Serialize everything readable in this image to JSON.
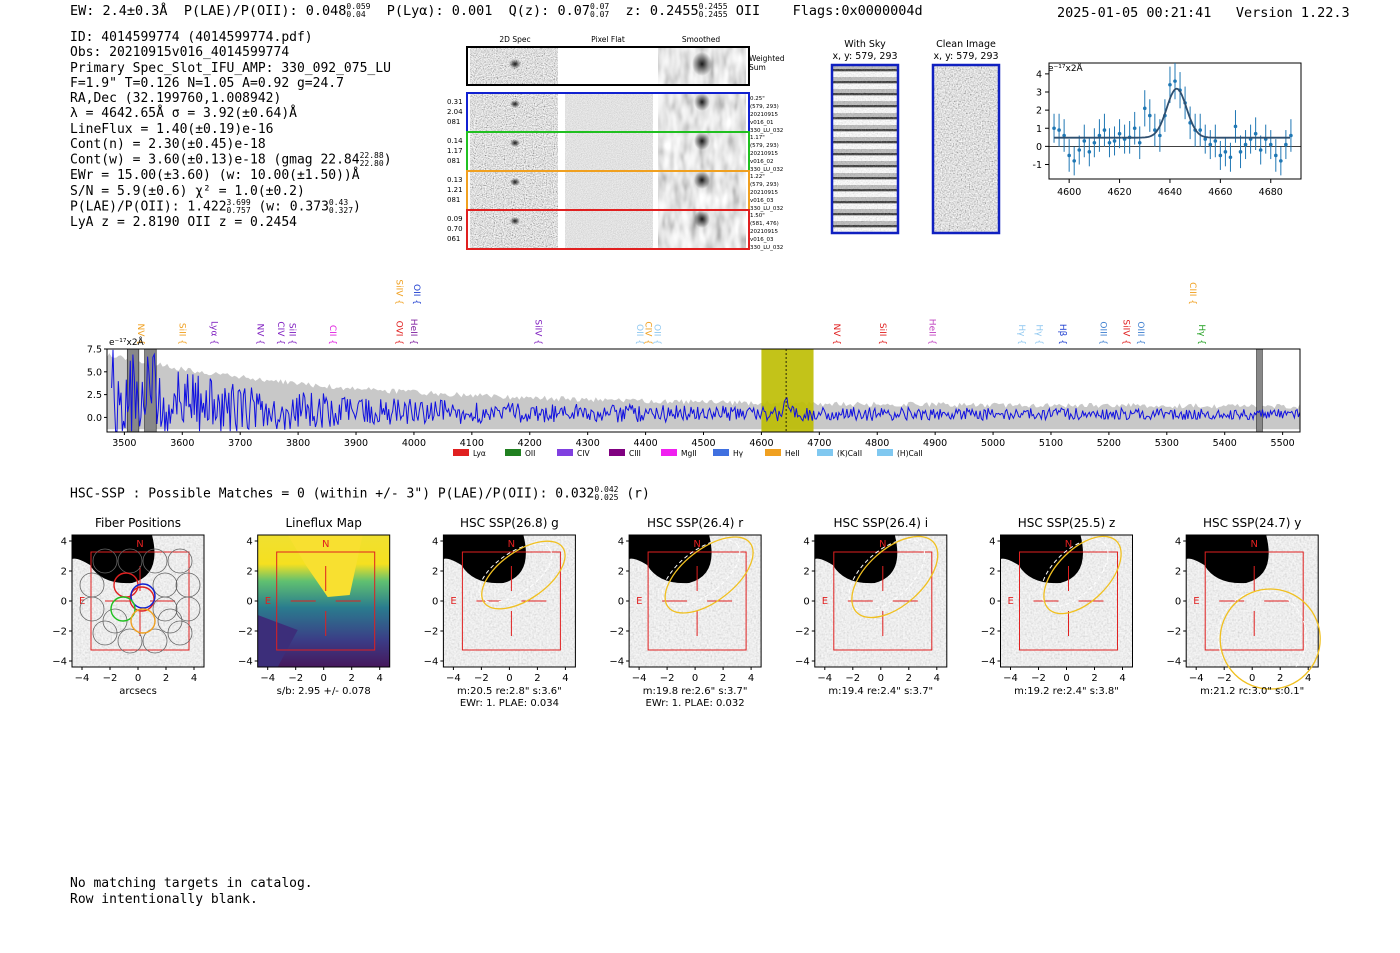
{
  "header": {
    "ew": "EW: 2.4±0.3Å",
    "plae": "P(LAE)/P(OII): 0.048",
    "plae_hi": "0.059",
    "plae_lo": "0.04",
    "plya": "P(Lyα): 0.001",
    "qz": "Q(z): 0.07",
    "qz_hi": "0.07",
    "qz_lo": "0.07",
    "z": "z: 0.2455",
    "z_hi": "0.2455",
    "z_lo": "0.2455",
    "z_line": "OII",
    "flags": "Flags:0x0000004d",
    "datetime": "2025-01-05 00:21:41",
    "version": "Version 1.22.3"
  },
  "info": {
    "id": "ID: 4014599774 (4014599774.pdf)",
    "obs": "Obs: 20210915v016_4014599774",
    "primary": "Primary Spec_Slot_IFU_AMP: 330_092_075_LU",
    "params": "F=1.9\"  T=0.126  N=1.05  A=0.92  g=24.7",
    "radec": "RA,Dec (32.199760,1.008942)",
    "lambda": "λ = 4642.65Å  σ = 3.92(±0.64)Å",
    "lineflux": "LineFlux = 1.40(±0.19)e-16",
    "contn": "Cont(n) = 2.30(±0.45)e-18",
    "contw": "Cont(w) = 3.60(±0.13)e-18 (gmag 22.84",
    "contw_hi": "22.88",
    "contw_lo": "22.80",
    "ewr": "EWr = 15.00(±3.60) (w: 10.00(±1.50))Å",
    "sn": "S/N = 5.9(±0.6)  χ² = 1.0(±0.2)",
    "plae": "P(LAE)/P(OII): 1.422",
    "plae_hi": "3.699",
    "plae_lo": "0.757",
    "plae_w": "(w: 0.373",
    "plae_w_hi": "0.43",
    "plae_w_lo": "0.327",
    "lyaz": "LyA z = 2.8190   OII z = 0.2454"
  },
  "cutouts": {
    "col_titles": [
      "2D Spec",
      "Pixel Flat",
      "Smoothed"
    ],
    "weighted_label_1": "Weighted",
    "weighted_label_2": "Sum",
    "rows": [
      {
        "left": [
          "0.31",
          "2.04",
          "081"
        ],
        "right": [
          "0.25\"",
          "(579, 293)",
          "20210915",
          "v016_01",
          "330_LU_032"
        ],
        "color": "#1020d0"
      },
      {
        "left": [
          "0.14",
          "1.17",
          "081"
        ],
        "right": [
          "1.17\"",
          "(579, 293)",
          "20210915",
          "v016_02",
          "330_LU_032"
        ],
        "color": "#20c020"
      },
      {
        "left": [
          "0.13",
          "1.21",
          "081"
        ],
        "right": [
          "1.22\"",
          "(579, 293)",
          "20210915",
          "v016_03",
          "330_LU_032"
        ],
        "color": "#f0a020"
      },
      {
        "left": [
          "0.09",
          "0.70",
          "061"
        ],
        "right": [
          "1.50\"",
          "(581, 476)",
          "20210915",
          "v016_03",
          "330_LU_032"
        ],
        "color": "#e02020"
      }
    ]
  },
  "sky": {
    "with_sky_title": "With Sky",
    "with_sky_coords": "x, y: 579, 293",
    "clean_title": "Clean Image",
    "clean_coords": "x, y: 579, 293"
  },
  "chart_data": [
    {
      "type": "line",
      "name": "zoom-line-fit",
      "title": "",
      "ylabel": "e⁻¹⁷x2Å",
      "xlim": [
        4592,
        4692
      ],
      "ylim": [
        -1.8,
        4.6
      ],
      "xticks": [
        "4600",
        "4620",
        "4640",
        "4660",
        "4680"
      ],
      "yticks": [
        "-1",
        "0",
        "1",
        "2",
        "3",
        "4"
      ],
      "fit": {
        "center": 4642.65,
        "sigma": 3.92,
        "amplitude": 2.7,
        "continuum": 0.48
      },
      "points_x": [
        4594,
        4596,
        4598,
        4600,
        4602,
        4604,
        4606,
        4608,
        4610,
        4612,
        4614,
        4616,
        4618,
        4620,
        4622,
        4624,
        4626,
        4628,
        4630,
        4632,
        4634,
        4636,
        4638,
        4640,
        4642,
        4644,
        4646,
        4648,
        4650,
        4652,
        4654,
        4656,
        4658,
        4660,
        4662,
        4664,
        4666,
        4668,
        4670,
        4672,
        4674,
        4676,
        4678,
        4680,
        4682,
        4684,
        4686,
        4688
      ],
      "points_y": [
        1.0,
        0.9,
        0.6,
        -0.5,
        -0.8,
        -0.2,
        0.3,
        -0.3,
        0.2,
        0.6,
        0.9,
        0.2,
        0.3,
        0.7,
        0.4,
        0.5,
        1.0,
        0.2,
        2.1,
        1.7,
        0.9,
        0.6,
        1.7,
        3.4,
        3.6,
        3.1,
        2.4,
        1.3,
        0.9,
        0.9,
        0.4,
        0.1,
        0.3,
        -0.5,
        -0.3,
        -0.6,
        1.1,
        -0.3,
        0.1,
        0.4,
        0.7,
        -0.2,
        0.4,
        0.1,
        -0.5,
        -0.8,
        0.1,
        0.6
      ],
      "points_err": [
        0.8,
        0.9,
        0.9,
        0.9,
        0.8,
        0.8,
        0.9,
        0.8,
        0.8,
        0.9,
        0.9,
        0.8,
        0.8,
        0.8,
        0.8,
        0.9,
        0.9,
        0.9,
        1.0,
        0.9,
        0.9,
        0.9,
        0.9,
        1.0,
        1.0,
        1.0,
        0.9,
        0.9,
        0.9,
        0.9,
        0.8,
        0.8,
        0.9,
        0.8,
        0.8,
        0.8,
        0.9,
        0.9,
        0.8,
        0.8,
        0.9,
        0.8,
        0.8,
        0.8,
        0.9,
        0.8,
        0.8,
        0.9
      ]
    },
    {
      "type": "line",
      "name": "full-spectrum",
      "ylabel": "e⁻¹⁷x2Å",
      "xlim": [
        3470,
        5530
      ],
      "ylim": [
        -1.6,
        7.5
      ],
      "xticks": [
        "3500",
        "3600",
        "3700",
        "3800",
        "3900",
        "4000",
        "4100",
        "4200",
        "4300",
        "4400",
        "4500",
        "4600",
        "4700",
        "4800",
        "4900",
        "5000",
        "5100",
        "5200",
        "5300",
        "5400",
        "5500"
      ],
      "yticks": [
        "0.0",
        "2.5",
        "5.0",
        "7.5"
      ],
      "highlight_range": [
        4600,
        4690
      ],
      "line_center": 4642.65,
      "masked_ranges": [
        [
          3505,
          3525
        ],
        [
          3535,
          3555
        ],
        [
          5455,
          5465
        ]
      ],
      "series_seed": 1337,
      "line_labels": [
        {
          "label": "NV",
          "x": 3518,
          "color": "#f0a020",
          "row": 2
        },
        {
          "label": "SiII",
          "x": 3590,
          "color": "#f0a020",
          "row": 2
        },
        {
          "label": "Lyα",
          "x": 3645,
          "color": "#8020c0",
          "row": 2
        },
        {
          "label": "NV",
          "x": 3725,
          "color": "#8020c0",
          "row": 2
        },
        {
          "label": "CIV",
          "x": 3760,
          "color": "#8020c0",
          "row": 2
        },
        {
          "label": "SiII",
          "x": 3780,
          "color": "#8020c0",
          "row": 2
        },
        {
          "label": "CII",
          "x": 3850,
          "color": "#e020e0",
          "row": 2
        },
        {
          "label": "SiIV",
          "x": 3965,
          "color": "#f0a020",
          "row": 0
        },
        {
          "label": "OVI",
          "x": 3965,
          "color": "#e02020",
          "row": 2
        },
        {
          "label": "OII",
          "x": 3995,
          "color": "#2040d0",
          "row": 0
        },
        {
          "label": "HeII",
          "x": 3990,
          "color": "#8020a0",
          "row": 2
        },
        {
          "label": "SiIV",
          "x": 4205,
          "color": "#8020c0",
          "row": 2
        },
        {
          "label": "OII",
          "x": 4380,
          "color": "#90c8f0",
          "row": 2
        },
        {
          "label": "CIV",
          "x": 4395,
          "color": "#f0a020",
          "row": 2
        },
        {
          "label": "OII",
          "x": 4410,
          "color": "#90c8f0",
          "row": 2
        },
        {
          "label": "NV",
          "x": 4720,
          "color": "#e02020",
          "row": 2
        },
        {
          "label": "SiII",
          "x": 4800,
          "color": "#e02020",
          "row": 2
        },
        {
          "label": "HeII",
          "x": 4885,
          "color": "#c040c0",
          "row": 2
        },
        {
          "label": "Hγ",
          "x": 5040,
          "color": "#90c8f0",
          "row": 2
        },
        {
          "label": "Hγ",
          "x": 5070,
          "color": "#90c8f0",
          "row": 2
        },
        {
          "label": "Hβ",
          "x": 5110,
          "color": "#2040d0",
          "row": 2
        },
        {
          "label": "OIII",
          "x": 5180,
          "color": "#4080d0",
          "row": 2
        },
        {
          "label": "SiIV",
          "x": 5220,
          "color": "#e02020",
          "row": 2
        },
        {
          "label": "OIII",
          "x": 5245,
          "color": "#4080d0",
          "row": 2
        },
        {
          "label": "CIII",
          "x": 5335,
          "color": "#f0a020",
          "row": 0
        },
        {
          "label": "Hγ",
          "x": 5350,
          "color": "#20a020",
          "row": 2
        }
      ],
      "legend": [
        {
          "label": "Lyα",
          "color": "#e02020"
        },
        {
          "label": "OII",
          "color": "#208020"
        },
        {
          "label": "CIV",
          "color": "#8040e0"
        },
        {
          "label": "CIII",
          "color": "#800080"
        },
        {
          "label": "MgII",
          "color": "#f020f0"
        },
        {
          "label": "Hγ",
          "color": "#4070e0"
        },
        {
          "label": "HeII",
          "color": "#f0a020"
        },
        {
          "label": "(K)CaII",
          "color": "#80c8f0"
        },
        {
          "label": "(H)CaII",
          "color": "#80c8f0"
        }
      ]
    }
  ],
  "hsc": {
    "summary": "HSC-SSP : Possible Matches = 0 (within +/- 3\")  P(LAE)/P(OII): 0.032",
    "summary_hi": "0.042",
    "summary_lo": "0.025",
    "summary_band": "(r)",
    "axis_ticks_x": [
      "−4",
      "−2",
      "0",
      "2",
      "4"
    ],
    "axis_ticks_y": [
      "4",
      "2",
      "0",
      "−2",
      "−4"
    ],
    "north": "N",
    "east": "E",
    "panels": [
      {
        "title": "Fiber Positions",
        "cap1": "arcsecs",
        "cap2": ""
      },
      {
        "title": "Lineflux Map",
        "cap1": "s/b: 2.95 +/- 0.078",
        "cap2": ""
      },
      {
        "title": "HSC SSP(26.8) g",
        "cap1": "m:20.5  re:2.8\"  s:3.6\"",
        "cap2": "EWr: 1. PLAE: 0.034"
      },
      {
        "title": "HSC SSP(26.4) r",
        "cap1": "m:19.8  re:2.6\"  s:3.7\"",
        "cap2": "EWr: 1. PLAE: 0.032"
      },
      {
        "title": "HSC SSP(26.4) i",
        "cap1": "m:19.4  re:2.4\"  s:3.7\"",
        "cap2": ""
      },
      {
        "title": "HSC SSP(25.5) z",
        "cap1": "m:19.2  re:2.4\"  s:3.8\"",
        "cap2": ""
      },
      {
        "title": "HSC SSP(24.7) y",
        "cap1": "m:21.2  rc:3.0\"  s:0.1\"",
        "cap2": ""
      }
    ]
  },
  "footer": {
    "line1": "No matching targets in catalog.",
    "line2": "Row intentionally blank."
  }
}
